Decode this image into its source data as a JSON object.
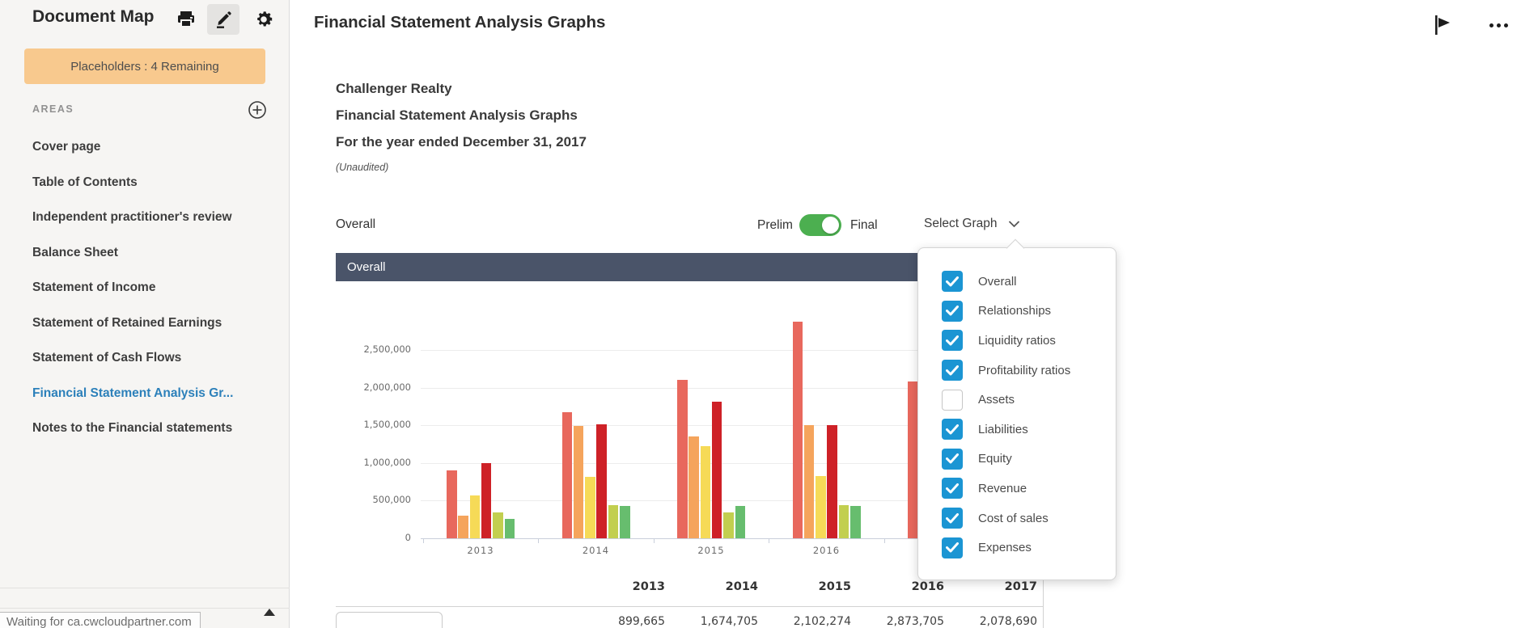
{
  "sidebar": {
    "title": "Document Map",
    "placeholders_badge": "Placeholders : 4 Remaining",
    "areas_label": "AREAS",
    "items": [
      {
        "label": "Cover page",
        "active": false
      },
      {
        "label": "Table of Contents",
        "active": false
      },
      {
        "label": "Independent practitioner's review",
        "active": false
      },
      {
        "label": "Balance Sheet",
        "active": false
      },
      {
        "label": "Statement of Income",
        "active": false
      },
      {
        "label": "Statement of Retained Earnings",
        "active": false
      },
      {
        "label": "Statement of Cash Flows",
        "active": false
      },
      {
        "label": "Financial Statement Analysis Gr...",
        "active": true
      },
      {
        "label": "Notes to the Financial statements",
        "active": false
      }
    ],
    "active_color": "#2c80ba",
    "badge_color": "#f8c98e"
  },
  "topbar": {
    "title": "Financial Statement Analysis Graphs"
  },
  "document": {
    "company": "Challenger Realty",
    "title": "Financial Statement Analysis Graphs",
    "period": "For the year ended December 31, 2017",
    "note": "(Unaudited)"
  },
  "controls": {
    "section_label": "Overall",
    "toggle_left": "Prelim",
    "toggle_right": "Final",
    "toggle_state": "Final",
    "toggle_color": "#4caf50",
    "select_graph_label": "Select Graph"
  },
  "dropdown": {
    "checkbox_color": "#1b95d3",
    "items": [
      {
        "label": "Overall",
        "checked": true
      },
      {
        "label": "Relationships",
        "checked": true
      },
      {
        "label": "Liquidity ratios",
        "checked": true
      },
      {
        "label": "Profitability ratios",
        "checked": true
      },
      {
        "label": "Assets",
        "checked": false
      },
      {
        "label": "Liabilities",
        "checked": true
      },
      {
        "label": "Equity",
        "checked": true
      },
      {
        "label": "Revenue",
        "checked": true
      },
      {
        "label": "Cost of sales",
        "checked": true
      },
      {
        "label": "Expenses",
        "checked": true
      }
    ]
  },
  "chart_data": {
    "type": "bar",
    "title": "Overall",
    "categories": [
      "2013",
      "2014",
      "2015",
      "2016",
      "2017"
    ],
    "series": [
      {
        "name": "series-1",
        "color": "#e8685d",
        "values": [
          899665,
          1674705,
          2102274,
          2873705,
          2078690
        ]
      },
      {
        "name": "series-2",
        "color": "#f5a45c",
        "values": [
          300000,
          1490000,
          1350000,
          1500000,
          null
        ]
      },
      {
        "name": "series-3",
        "color": "#f6da57",
        "values": [
          570000,
          820000,
          1220000,
          830000,
          null
        ]
      },
      {
        "name": "series-4",
        "color": "#ce2127",
        "values": [
          1000000,
          1510000,
          1810000,
          1500000,
          null
        ]
      },
      {
        "name": "series-5",
        "color": "#c2cf4f",
        "values": [
          340000,
          440000,
          340000,
          440000,
          null
        ]
      },
      {
        "name": "series-6",
        "color": "#67bd6e",
        "values": [
          260000,
          430000,
          430000,
          430000,
          null
        ]
      }
    ],
    "yticks": [
      0,
      500000,
      1000000,
      1500000,
      2000000,
      2500000
    ],
    "ylim": [
      0,
      2700000
    ],
    "grid": true,
    "legend_position": "none",
    "xlabel": "",
    "ylabel": ""
  },
  "table": {
    "years": [
      "2013",
      "2014",
      "2015",
      "2016",
      "2017"
    ],
    "rows": [
      {
        "values": [
          "899,665",
          "1,674,705",
          "2,102,274",
          "2,873,705",
          "2,078,690"
        ]
      }
    ]
  },
  "statusbar": {
    "text": "Waiting for ca.cwcloudpartner.com"
  }
}
